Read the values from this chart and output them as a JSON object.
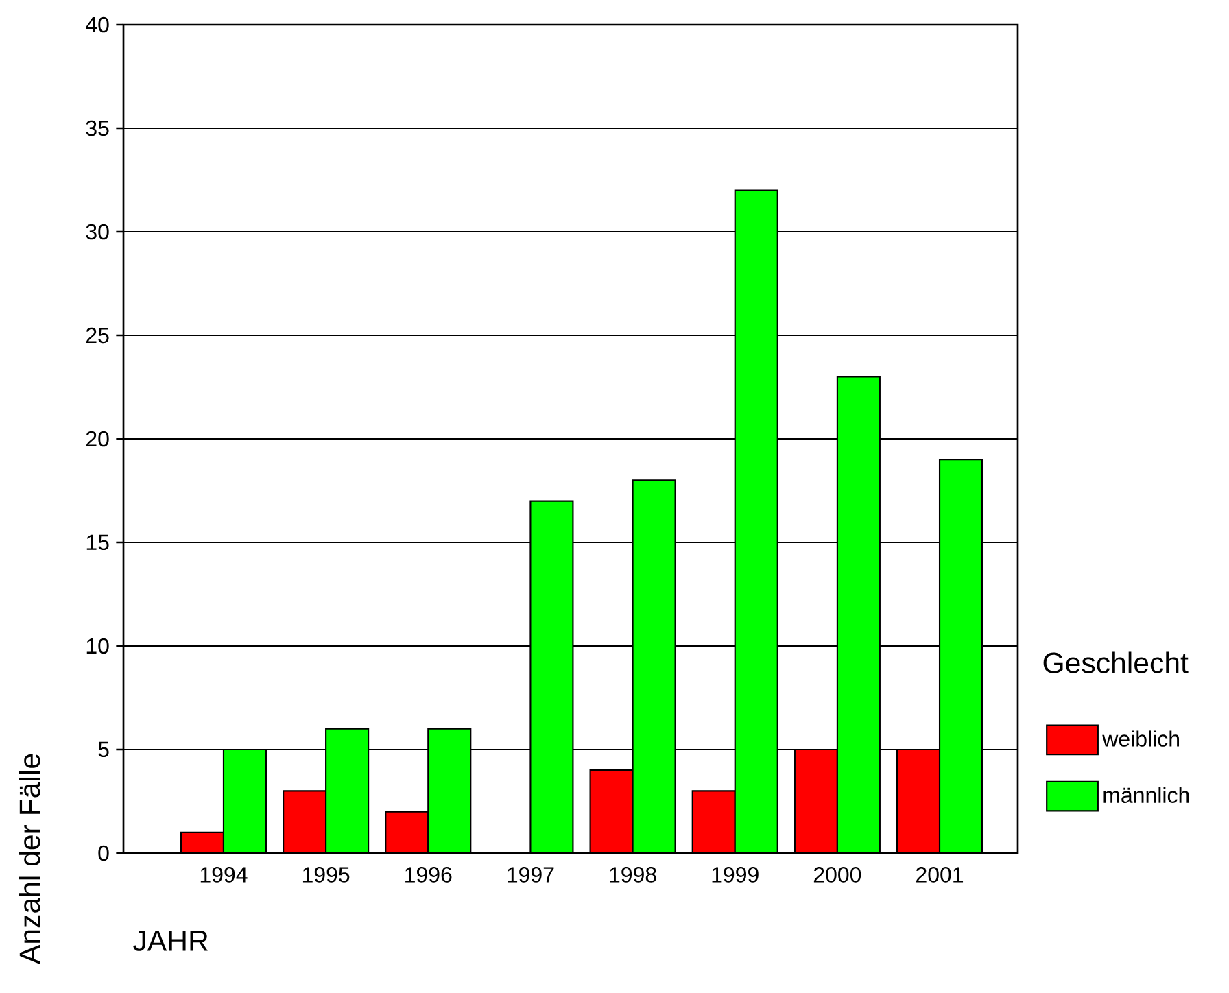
{
  "chart_data": {
    "type": "bar",
    "xlabel": "JAHR",
    "ylabel": "Anzahl der Fälle",
    "legend_title": "Geschlecht",
    "categories": [
      "1994",
      "1995",
      "1996",
      "1997",
      "1998",
      "1999",
      "2000",
      "2001"
    ],
    "series": [
      {
        "name": "weiblich",
        "color": "#ff0000",
        "values": [
          1,
          3,
          2,
          null,
          4,
          3,
          5,
          5
        ]
      },
      {
        "name": "männlich",
        "color": "#00ff00",
        "values": [
          5,
          6,
          6,
          17,
          18,
          32,
          23,
          19
        ]
      }
    ],
    "ylim": [
      0,
      40
    ],
    "yticks": [
      0,
      5,
      10,
      15,
      20,
      25,
      30,
      35,
      40
    ],
    "grid": "y",
    "legend": "right"
  }
}
